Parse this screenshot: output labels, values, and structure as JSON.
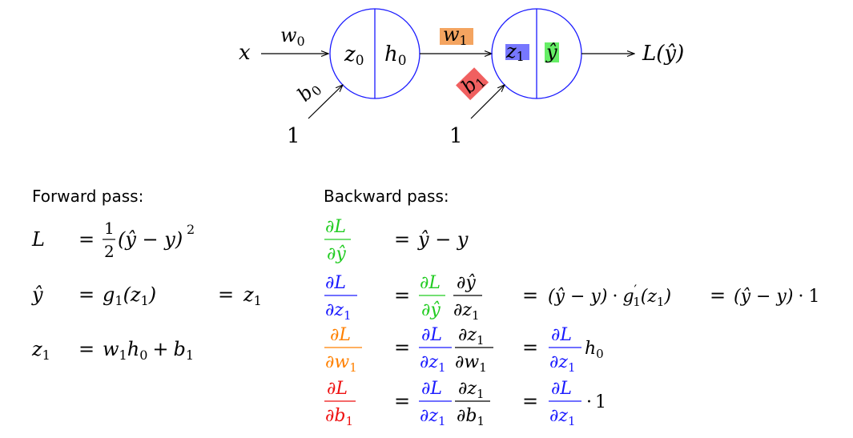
{
  "network": {
    "x": "x",
    "w0": "w",
    "w0_sub": "0",
    "z0": "z",
    "z0_sub": "0",
    "h0": "h",
    "h0_sub": "0",
    "b0": "b",
    "b0_sub": "0",
    "one": "1",
    "w1": "w",
    "w1_sub": "1",
    "z1": "z",
    "z1_sub": "1",
    "yhat": "ŷ",
    "b1": "b",
    "b1_sub": "1",
    "loss": "L(ŷ)"
  },
  "forward": {
    "heading": "Forward pass:",
    "L": "L",
    "eq": "=",
    "half_num": "1",
    "half_den": "2",
    "sq_body": "(ŷ − y)",
    "sq_exp": "2",
    "yhat": "ŷ",
    "g1": "g",
    "g1_sub": "1",
    "g1_arg_open": "(z",
    "g1_arg_close": ")",
    "z": "z",
    "z_sub": "1",
    "w": "w",
    "h": "h",
    "b": "b",
    "sub0": "0",
    "sub1": "1",
    "plus": "+"
  },
  "backward": {
    "heading": "Backward pass:",
    "dL": "∂L",
    "dyhat": "∂ŷ",
    "dz": "∂z",
    "dw": "∂w",
    "db": "∂b",
    "sub1": "1",
    "sub0": "0",
    "eq": "=",
    "yhat_minus_y": "ŷ − y",
    "paren_yhat_minus_y": "(ŷ − y)",
    "dot": "·",
    "g1prime": "g",
    "prime": "′",
    "arg_open": "(z",
    "arg_close": ")",
    "one": "1",
    "h": "h"
  },
  "colors": {
    "node_stroke": "#1a1aff",
    "green": "#22cc22",
    "blue": "#1a1aff",
    "orange": "#ff8000",
    "red": "#ee1111",
    "green_bg": "#66ee66",
    "blue_bg": "#7777ff",
    "orange_bg": "#f4a460",
    "red_bg": "#f06060"
  }
}
